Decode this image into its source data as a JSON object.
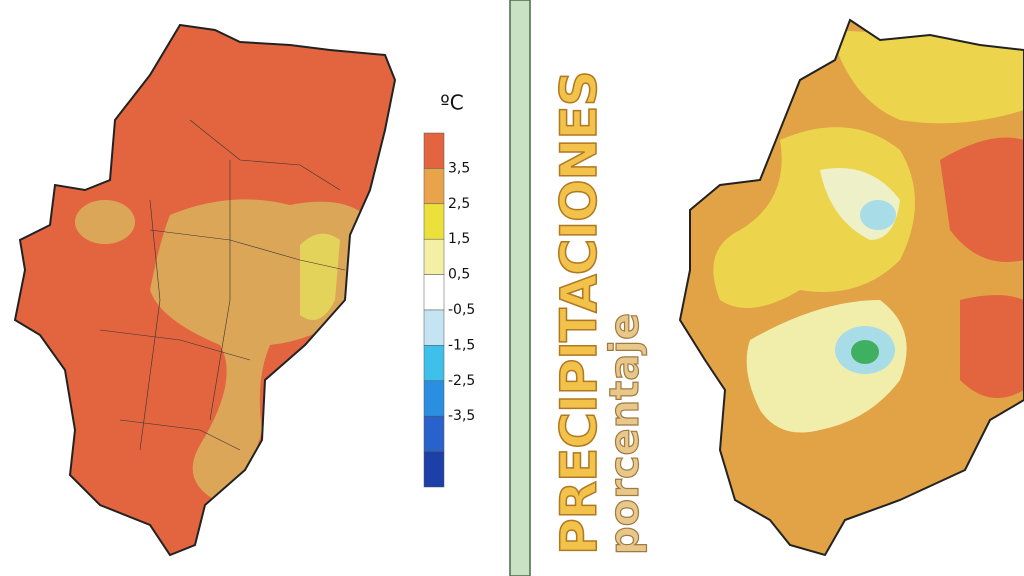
{
  "legend": {
    "unit": "ºC",
    "labels": [
      "3,5",
      "2,5",
      "1,5",
      "0,5",
      "-0,5",
      "-1,5",
      "-2,5",
      "-3,5"
    ],
    "colors": [
      "#e2653f",
      "#e9a34a",
      "#ece13c",
      "#f3f0a6",
      "#ffffff",
      "#c4e4f4",
      "#3ec0ea",
      "#2a8fe0",
      "#2a62cc",
      "#1c3fa8"
    ]
  },
  "right_panel": {
    "title": "PRECIPITACIONES",
    "subtitle": "porcentaje"
  }
}
